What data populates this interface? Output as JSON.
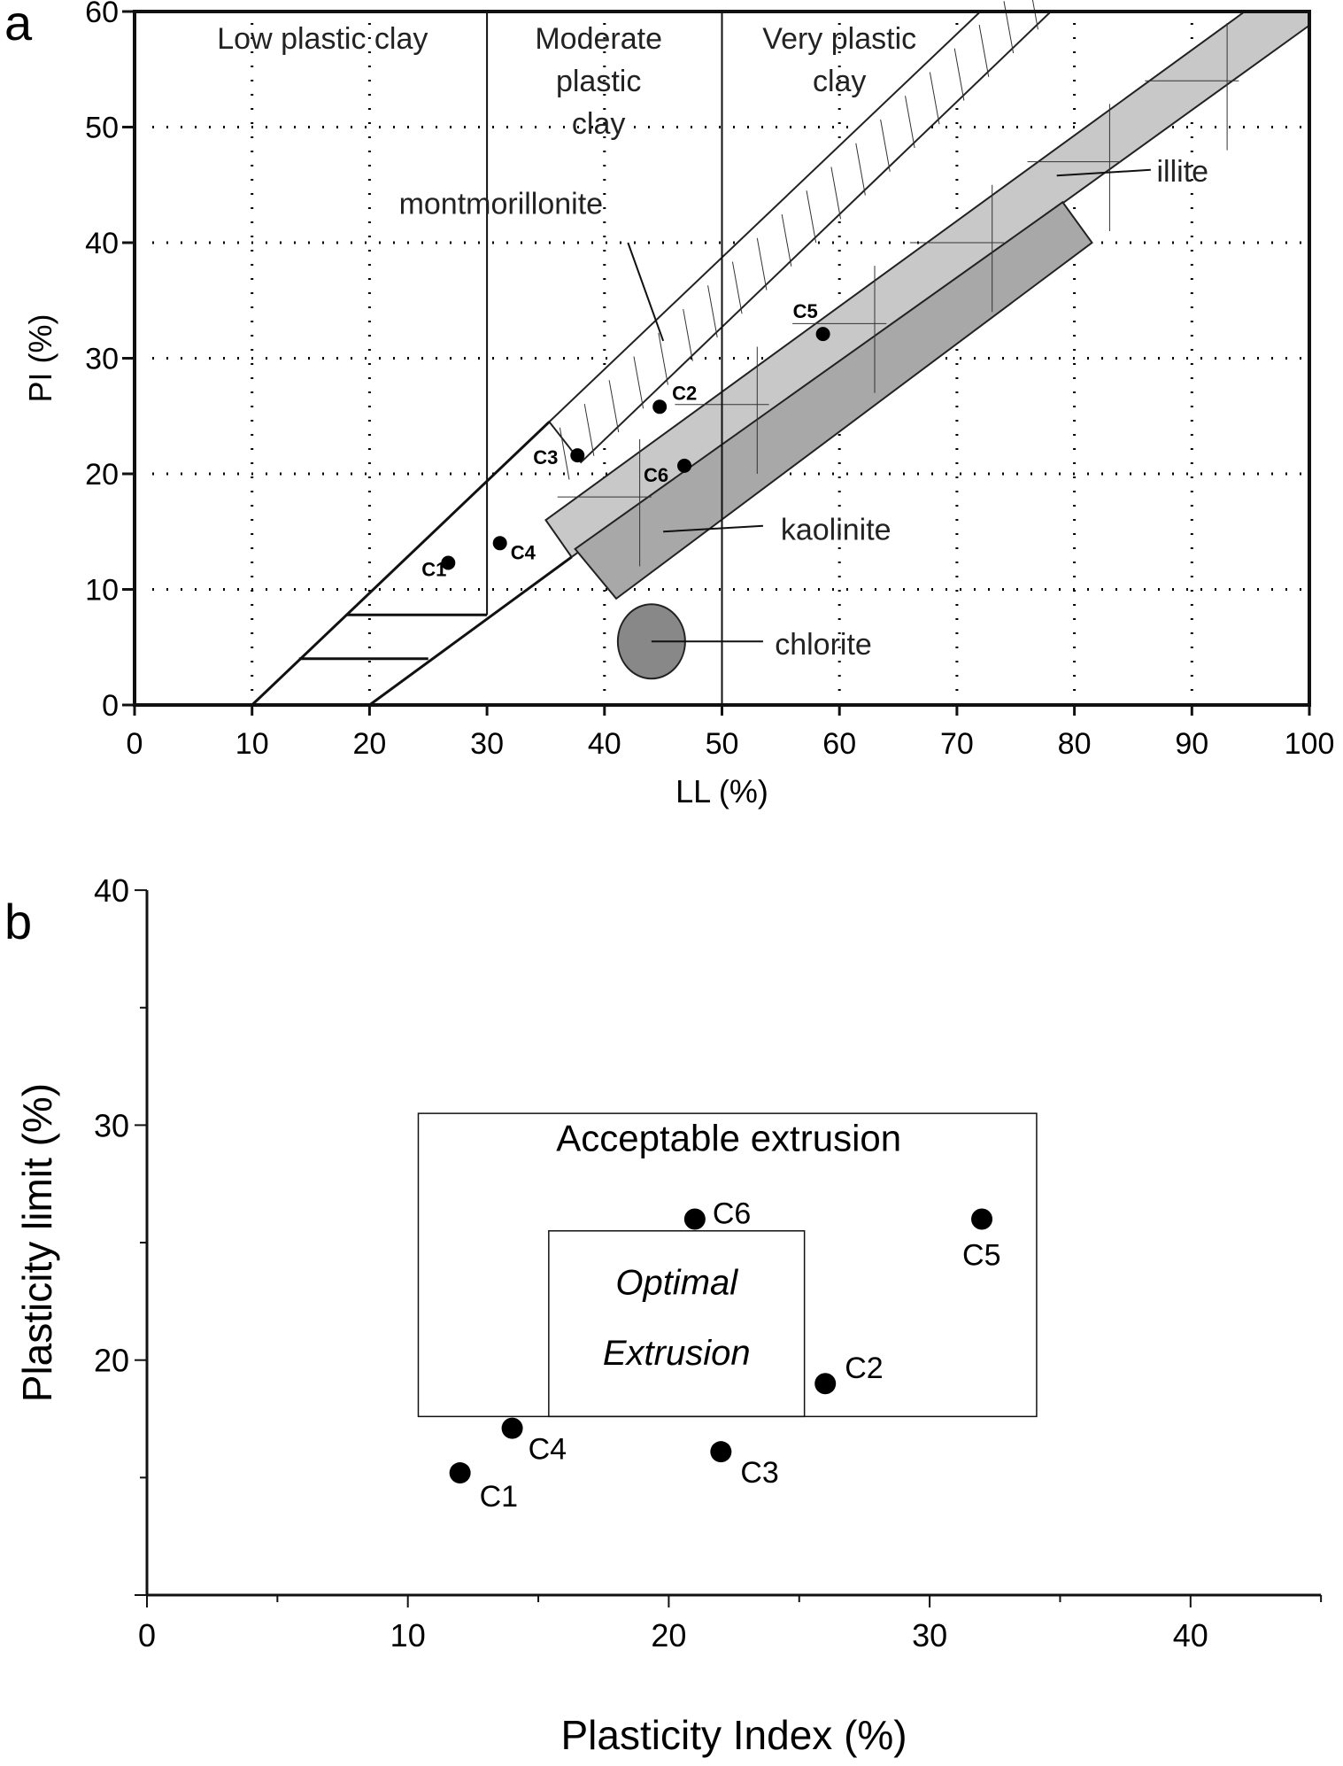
{
  "chart_data": [
    {
      "panel": "a",
      "type": "scatter",
      "xlabel": "LL (%)",
      "ylabel": "PI (%)",
      "xlim": [
        0,
        100
      ],
      "ylim": [
        0,
        60
      ],
      "xticks": [
        0,
        10,
        20,
        30,
        40,
        50,
        60,
        70,
        80,
        90,
        100
      ],
      "yticks": [
        0,
        10,
        20,
        30,
        40,
        50,
        60
      ],
      "grid": "dotted",
      "zones": [
        "Low plastic clay",
        "Moderate",
        "plastic",
        "clay",
        "Very plastic",
        "clay"
      ],
      "minerals": {
        "montmorillonite": "montmorillonite",
        "illite": "illite",
        "kaolinite": "kaolinite",
        "chlorite": "chlorite"
      },
      "points": [
        {
          "label": "C1",
          "x": 26.7,
          "y": 12.3
        },
        {
          "label": "C2",
          "x": 44.7,
          "y": 25.8
        },
        {
          "label": "C3",
          "x": 37.7,
          "y": 21.6
        },
        {
          "label": "C4",
          "x": 31.1,
          "y": 14.0
        },
        {
          "label": "C5",
          "x": 58.6,
          "y": 32.1
        },
        {
          "label": "C6",
          "x": 46.8,
          "y": 20.7
        }
      ]
    },
    {
      "panel": "b",
      "type": "scatter",
      "xlabel": "Plasticity Index (%)",
      "ylabel": "Plasticity limit (%)",
      "xlim": [
        0,
        45
      ],
      "ylim": [
        10,
        40
      ],
      "xticks": [
        0,
        10,
        20,
        30,
        40
      ],
      "yticks": [
        20,
        30,
        40
      ],
      "regions": [
        {
          "label": "Acceptable extrusion",
          "x": [
            10.4,
            34.1
          ],
          "y": [
            17.6,
            30.5
          ]
        },
        {
          "label1": "Optimal",
          "label2": "Extrusion",
          "x": [
            15.4,
            25.2
          ],
          "y": [
            17.6,
            25.5
          ]
        }
      ],
      "points": [
        {
          "label": "C1",
          "x": 12,
          "y": 15.2
        },
        {
          "label": "C2",
          "x": 26,
          "y": 19
        },
        {
          "label": "C3",
          "x": 22,
          "y": 16.1
        },
        {
          "label": "C4",
          "x": 14,
          "y": 17.1
        },
        {
          "label": "C5",
          "x": 32,
          "y": 26
        },
        {
          "label": "C6",
          "x": 21,
          "y": 26
        }
      ]
    }
  ]
}
